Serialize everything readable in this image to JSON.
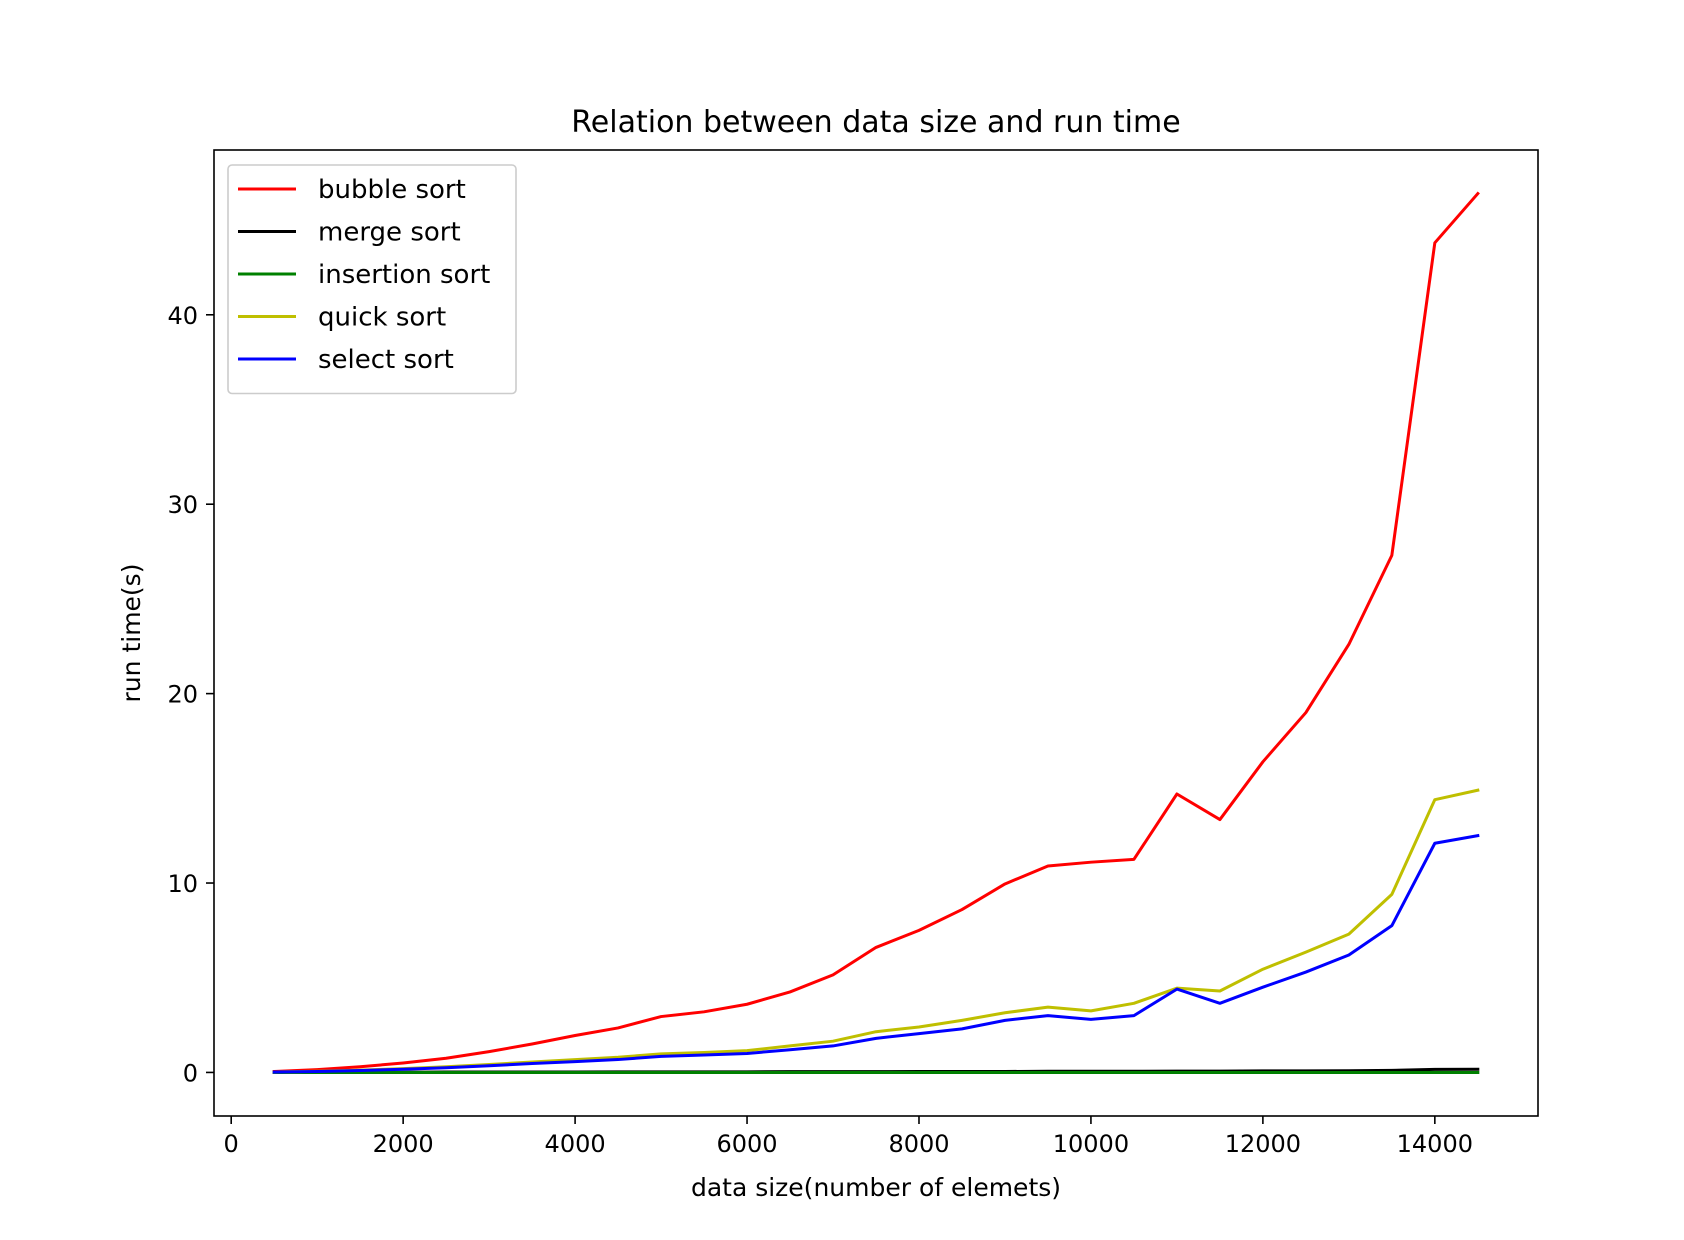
{
  "chart_data": {
    "type": "line",
    "title": "Relation between data size and run time",
    "xlabel": "data size(number of elemets)",
    "ylabel": "run time(s)",
    "xlim": [
      -200,
      15200
    ],
    "ylim": [
      -2.3,
      48.7
    ],
    "xticks": [
      0,
      2000,
      4000,
      6000,
      8000,
      10000,
      12000,
      14000
    ],
    "xtick_labels": [
      "0",
      "2000",
      "4000",
      "6000",
      "8000",
      "10000",
      "12000",
      "14000"
    ],
    "yticks": [
      0,
      10,
      20,
      30,
      40
    ],
    "ytick_labels": [
      "0",
      "10",
      "20",
      "30",
      "40"
    ],
    "grid": false,
    "legend_position": "upper-left",
    "x": [
      500,
      1000,
      1500,
      2000,
      2500,
      3000,
      3500,
      4000,
      4500,
      5000,
      5500,
      6000,
      6500,
      7000,
      7500,
      8000,
      8500,
      9000,
      9500,
      10000,
      10500,
      11000,
      11500,
      12000,
      12500,
      13000,
      13500,
      14000,
      14500
    ],
    "series": [
      {
        "name": "bubble sort",
        "color": "#ff0000",
        "values": [
          0.05,
          0.15,
          0.3,
          0.5,
          0.75,
          1.1,
          1.5,
          1.95,
          2.35,
          2.95,
          3.2,
          3.6,
          4.25,
          5.15,
          6.6,
          7.5,
          8.6,
          9.95,
          10.9,
          11.1,
          11.25,
          14.7,
          13.35,
          16.4,
          19.0,
          22.6,
          27.3,
          43.8,
          46.4
        ]
      },
      {
        "name": "merge sort",
        "color": "#000000",
        "values": [
          0.0,
          0.01,
          0.01,
          0.01,
          0.02,
          0.02,
          0.02,
          0.02,
          0.03,
          0.03,
          0.03,
          0.03,
          0.04,
          0.04,
          0.04,
          0.05,
          0.05,
          0.05,
          0.06,
          0.06,
          0.06,
          0.07,
          0.07,
          0.08,
          0.08,
          0.09,
          0.11,
          0.16,
          0.17
        ]
      },
      {
        "name": "insertion sort",
        "color": "#008000",
        "values": [
          0.0,
          0.0,
          0.0,
          0.0,
          0.0,
          0.0,
          0.0,
          0.0,
          0.0,
          0.0,
          0.0,
          0.0,
          0.0,
          0.0,
          0.0,
          0.0,
          0.0,
          0.0,
          0.0,
          0.0,
          0.0,
          0.0,
          0.0,
          0.0,
          0.0,
          0.0,
          0.0,
          0.0,
          0.0
        ]
      },
      {
        "name": "quick sort",
        "color": "#bfbf00",
        "values": [
          0.02,
          0.06,
          0.12,
          0.2,
          0.3,
          0.42,
          0.55,
          0.68,
          0.8,
          0.98,
          1.05,
          1.15,
          1.4,
          1.65,
          2.15,
          2.4,
          2.75,
          3.15,
          3.45,
          3.25,
          3.65,
          4.45,
          4.3,
          5.45,
          6.35,
          7.3,
          9.4,
          14.4,
          14.9
        ]
      },
      {
        "name": "select sort",
        "color": "#0000ff",
        "values": [
          0.02,
          0.05,
          0.1,
          0.17,
          0.25,
          0.35,
          0.47,
          0.57,
          0.68,
          0.85,
          0.92,
          1.0,
          1.2,
          1.4,
          1.8,
          2.05,
          2.3,
          2.75,
          3.0,
          2.8,
          3.0,
          4.4,
          3.65,
          4.5,
          5.3,
          6.2,
          7.75,
          12.1,
          12.5
        ]
      }
    ]
  }
}
